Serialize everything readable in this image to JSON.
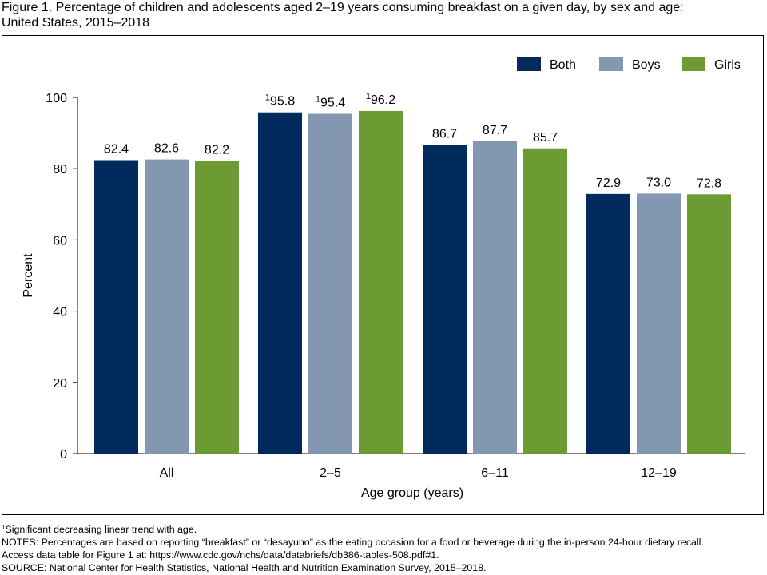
{
  "title_line1": "Figure 1. Percentage of children and adolescents aged 2–19 years consuming breakfast on a given day, by sex and age:",
  "title_line2": "United States, 2015–2018",
  "chart_data": {
    "type": "bar",
    "categories": [
      "All",
      "2–5",
      "6–11",
      "12–19"
    ],
    "series": [
      {
        "name": "Both",
        "color": "#002b5c",
        "values": [
          82.4,
          95.8,
          86.7,
          72.9
        ],
        "labels": [
          "82.4",
          "95.8",
          "86.7",
          "72.9"
        ],
        "superscripts": [
          "",
          "1",
          "",
          ""
        ]
      },
      {
        "name": "Boys",
        "color": "#8497b0",
        "values": [
          82.6,
          95.4,
          87.7,
          73.0
        ],
        "labels": [
          "82.6",
          "95.4",
          "87.7",
          "73.0"
        ],
        "superscripts": [
          "",
          "1",
          "",
          ""
        ]
      },
      {
        "name": "Girls",
        "color": "#6c9b33",
        "values": [
          82.2,
          96.2,
          85.7,
          72.8
        ],
        "labels": [
          "82.2",
          "96.2",
          "85.7",
          "72.8"
        ],
        "superscripts": [
          "",
          "1",
          "",
          ""
        ]
      }
    ],
    "xlabel": "Age group (years)",
    "ylabel": "Percent",
    "ylim": [
      0,
      100
    ],
    "yticks": [
      0,
      20,
      40,
      60,
      80,
      100
    ],
    "grid": false,
    "legend_position": "top-right"
  },
  "footnote": {
    "marker": "1",
    "text": "Significant decreasing linear trend with age."
  },
  "notes": "NOTES: Percentages are based on reporting “breakfast” or “desayuno” as the eating occasion for a food or beverage during the in-person 24-hour dietary recall.",
  "access": "Access data table for Figure 1 at: https://www.cdc.gov/nchs/data/databriefs/db386-tables-508.pdf#1.",
  "source": "SOURCE: National Center for Health Statistics, National Health and Nutrition Examination Survey, 2015–2018."
}
